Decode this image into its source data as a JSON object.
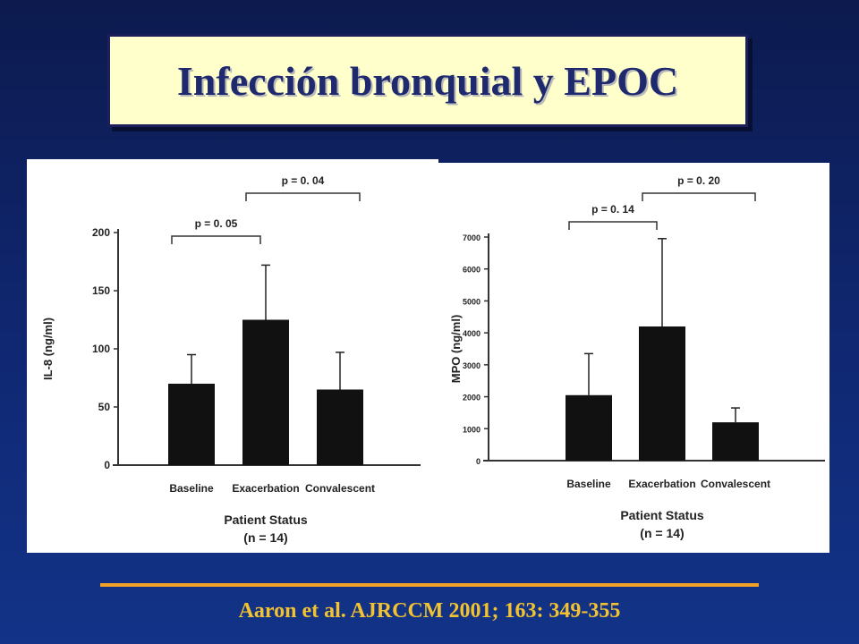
{
  "slide": {
    "title": "Infección bronquial y EPOC",
    "citation": "Aaron et al. AJRCCM 2001; 163: 349-355",
    "accent_color": "#f0a326",
    "title_bg": "#ffffcc"
  },
  "chart_data": [
    {
      "type": "bar",
      "ylabel": "IL-8 (ng/ml)",
      "xlabel_line1": "Patient Status",
      "xlabel_line2": "(n = 14)",
      "categories": [
        "Baseline",
        "Exacerbation",
        "Convalescent"
      ],
      "values": [
        70,
        125,
        65
      ],
      "error_upper": [
        95,
        172,
        97
      ],
      "ylim": [
        0,
        200
      ],
      "yticks": [
        0,
        50,
        100,
        150,
        200
      ],
      "yticklabels": [
        "0",
        "50",
        "100",
        "150",
        "200"
      ],
      "brackets": [
        {
          "from": 0,
          "to": 1,
          "label": "p = 0. 05"
        },
        {
          "from": 1,
          "to": 2,
          "label": "p = 0. 04"
        }
      ]
    },
    {
      "type": "bar",
      "ylabel": "MPO (ng/ml)",
      "xlabel_line1": "Patient Status",
      "xlabel_line2": "(n = 14)",
      "categories": [
        "Baseline",
        "Exacerbation",
        "Convalescent"
      ],
      "values": [
        2050,
        4200,
        1200
      ],
      "error_upper": [
        3350,
        6950,
        1650
      ],
      "ylim": [
        0,
        7000
      ],
      "yticks": [
        0,
        1000,
        2000,
        3000,
        4000,
        5000,
        6000,
        7000
      ],
      "yticklabels": [
        "0",
        "1000",
        "2000",
        "3000",
        "4000",
        "5000",
        "6000",
        "7000"
      ],
      "brackets": [
        {
          "from": 0,
          "to": 1,
          "label": "p = 0. 14"
        },
        {
          "from": 1,
          "to": 2,
          "label": "p = 0. 20"
        }
      ]
    }
  ]
}
